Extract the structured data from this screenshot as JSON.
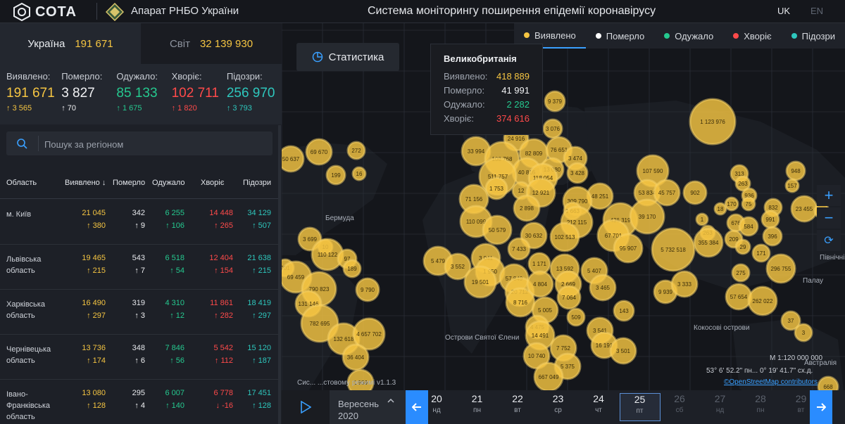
{
  "header": {
    "logo_text": "СОТА",
    "org": "Апарат РНБО України",
    "title": "Система моніторингу поширення епідемії коронавірусу",
    "lang_active": "UK",
    "lang_other": "EN"
  },
  "tabs": {
    "ua_label": "Україна",
    "ua_value": "191 671",
    "world_label": "Світ",
    "world_value": "32 139 930"
  },
  "summary": [
    {
      "label": "Виявлено:",
      "value": "191 671",
      "delta": "3 565",
      "cls": "yellow"
    },
    {
      "label": "Померло:",
      "value": "3 827",
      "delta": "70",
      "cls": "white"
    },
    {
      "label": "Одужало:",
      "value": "85 133",
      "delta": "1 675",
      "cls": "green"
    },
    {
      "label": "Хворіє:",
      "value": "102 711",
      "delta": "1 820",
      "cls": "red"
    },
    {
      "label": "Підозри:",
      "value": "256 970",
      "delta": "3 793",
      "cls": "teal"
    }
  ],
  "search": {
    "placeholder": "Пошук за регіоном"
  },
  "table": {
    "headers": [
      "Область",
      "Виявлено",
      "Померло",
      "Одужало",
      "Хворіє",
      "Підозри"
    ],
    "sort_arrow": "↓",
    "rows": [
      {
        "name": "м. Київ",
        "cases": "21 045",
        "cases_d": "380",
        "deaths": "342",
        "deaths_d": "9",
        "rec": "6 255",
        "rec_d": "106",
        "sick": "14 448",
        "sick_d": "265",
        "susp": "34 129",
        "susp_d": "507"
      },
      {
        "name": "Львівська область",
        "cases": "19 465",
        "cases_d": "215",
        "deaths": "543",
        "deaths_d": "7",
        "rec": "6 518",
        "rec_d": "54",
        "sick": "12 404",
        "sick_d": "154",
        "susp": "21 638",
        "susp_d": "215"
      },
      {
        "name": "Харківська область",
        "cases": "16 490",
        "cases_d": "297",
        "deaths": "319",
        "deaths_d": "3",
        "rec": "4 310",
        "rec_d": "12",
        "sick": "11 861",
        "sick_d": "282",
        "susp": "18 419",
        "susp_d": "297"
      },
      {
        "name": "Чернівецька область",
        "cases": "13 736",
        "cases_d": "174",
        "deaths": "348",
        "deaths_d": "6",
        "rec": "7 846",
        "rec_d": "56",
        "sick": "5 542",
        "sick_d": "112",
        "susp": "15 120",
        "susp_d": "187"
      },
      {
        "name": "Івано-Франківська область",
        "cases": "13 080",
        "cases_d": "128",
        "deaths": "295",
        "deaths_d": "4",
        "rec": "6 007",
        "rec_d": "140",
        "sick": "6 778",
        "sick_d": "-16",
        "susp": "17 451",
        "susp_d": "128"
      }
    ]
  },
  "map": {
    "legend": [
      {
        "label": "Виявлено",
        "color": "#f5c542"
      },
      {
        "label": "Померло",
        "color": "#ffffff"
      },
      {
        "label": "Одужало",
        "color": "#25c98f"
      },
      {
        "label": "Хворіє",
        "color": "#ff4a4a"
      },
      {
        "label": "Підозри",
        "color": "#2ec7bd"
      }
    ],
    "stats_button": "Статистика",
    "tooltip": {
      "title": "Великобританія",
      "rows": [
        {
          "label": "Виявлено:",
          "value": "418 889",
          "color": "#f5c542"
        },
        {
          "label": "Померло:",
          "value": "41 991",
          "color": "#f1f2f4"
        },
        {
          "label": "Одужало:",
          "value": "2 282",
          "color": "#25c98f"
        },
        {
          "label": "Хворіє:",
          "value": "374 616",
          "color": "#ff4a4a"
        }
      ]
    },
    "labels": [
      "Бермуда",
      "Острови Святої Єлени",
      "Кокосові острови",
      "Палау",
      "Північні Мар... остро",
      "Австралія"
    ],
    "version": "Сис... ...стовому режимі v1.1.3",
    "scale": "М 1:120 000 000",
    "coords": "53° 6' 52.2\" пн... 0° 19' 41.7\" сх.д.",
    "attribution": "©OpenStreetMap contributors",
    "bubbles": [
      "1 123 976",
      "9 379",
      "3 076",
      "24 916",
      "82 809",
      "76 651",
      "33 994",
      "108 768",
      "40 816",
      "13 080",
      "3 474",
      "511 757",
      "118 054",
      "3 428",
      "1 753",
      "12",
      "12 921",
      "107 590",
      "313",
      "948",
      "69 670",
      "272",
      "50 637",
      "199",
      "16",
      "263",
      "157",
      "71 156",
      "48 251",
      "53 834",
      "45 757",
      "902",
      "936",
      "2 898",
      "309 790",
      "18",
      "170",
      "75",
      "832",
      "23 455",
      "712",
      "1 663",
      "436 319",
      "39 170",
      "991",
      "110 099",
      "212 115",
      "676",
      "584",
      "50 579",
      "30 632",
      "102 513",
      "1",
      "263",
      "3 699",
      "10",
      "67 701",
      "5 732 518",
      "355 384",
      "209",
      "396",
      "110 122",
      "7 433",
      "95 907",
      "29",
      "171",
      "97",
      "201",
      "5 479",
      "3 041",
      "1 171",
      "13 592",
      "5 407",
      "275",
      "296 755",
      "69 459",
      "189",
      "3 552",
      "1 950",
      "57 849",
      "19 501",
      "2 669",
      "3 465",
      "9 939",
      "3 333",
      "57 654",
      "262 022",
      "790 823",
      "9 790",
      "20 712",
      "4 804",
      "7 064",
      "131 146",
      "8 716",
      "143",
      "5 005",
      "509",
      "782 695",
      "4 475",
      "3 541",
      "37",
      "3",
      "132 618",
      "4 657 702",
      "14 491",
      "7 752",
      "16 191",
      "3 501",
      "10 740",
      "36 404",
      "5 375",
      "667 049",
      "1 959",
      "668"
    ]
  },
  "timeline": {
    "month": "Вересень",
    "year": "2020",
    "days": [
      {
        "d": "20",
        "w": "нд"
      },
      {
        "d": "21",
        "w": "пн"
      },
      {
        "d": "22",
        "w": "вт"
      },
      {
        "d": "23",
        "w": "ср"
      },
      {
        "d": "24",
        "w": "чт"
      },
      {
        "d": "25",
        "w": "пт"
      },
      {
        "d": "26",
        "w": "сб"
      },
      {
        "d": "27",
        "w": "нд"
      },
      {
        "d": "28",
        "w": "пн"
      },
      {
        "d": "29",
        "w": "вт"
      }
    ]
  }
}
